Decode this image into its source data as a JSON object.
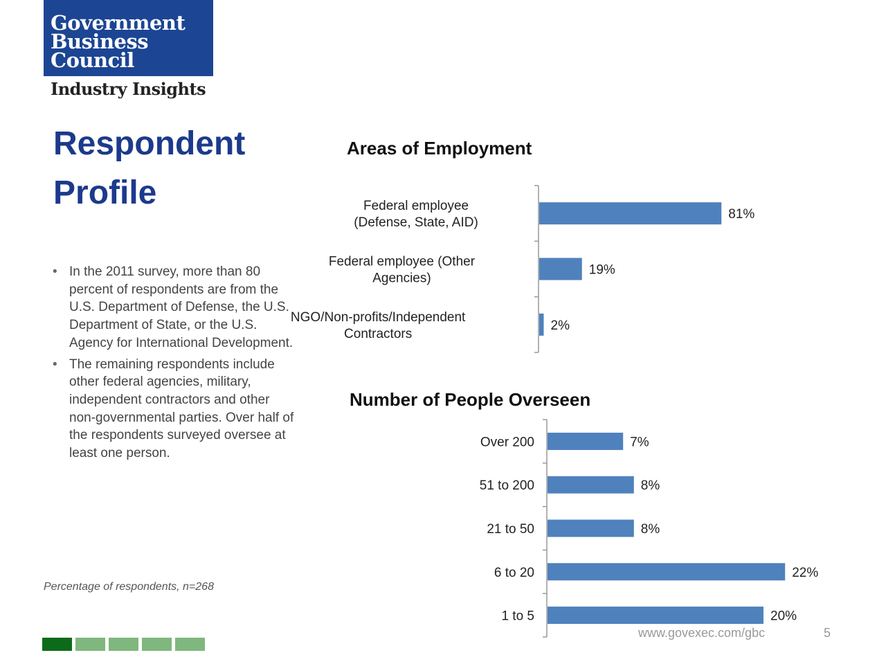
{
  "brand": {
    "logo_lines": [
      "Government",
      "Business",
      "Council"
    ],
    "subtitle": "Industry Insights",
    "logo_color": "#1c4593"
  },
  "slide": {
    "title_lines": [
      "Respondent",
      "Profile"
    ],
    "bullets": [
      "In the 2011 survey, more than 80 percent of respondents are from the U.S. Department of Defense, the U.S. Department of State, or the U.S. Agency for International Development.",
      "The remaining respondents include other federal agencies, military, independent contractors and other non-governmental parties. Over half  of the respondents surveyed oversee at least one person."
    ],
    "note": "Percentage of respondents, n=268",
    "footer_url": "www.govexec.com/gbc",
    "page_number": "5",
    "footer_colors": [
      "#0b6b1a",
      "#7fb77e",
      "#7fb77e",
      "#7fb77e",
      "#7fb77e"
    ]
  },
  "chart_data": [
    {
      "type": "bar",
      "orientation": "horizontal",
      "title": "Areas of Employment",
      "categories": [
        [
          "Federal employee",
          "(Defense, State, AID)"
        ],
        [
          "Federal employee (Other",
          "Agencies)"
        ],
        [
          "NGO/Non-profits/Independent",
          "Contractors"
        ]
      ],
      "values": [
        81,
        19,
        2
      ],
      "value_labels": [
        "81%",
        "19%",
        "2%"
      ],
      "xlim": [
        0,
        100
      ],
      "bar_color": "#4f81bd",
      "grid": false
    },
    {
      "type": "bar",
      "orientation": "horizontal",
      "title": "Number of People Overseen",
      "categories": [
        "Over 200",
        "51 to 200",
        "21 to 50",
        "6 to 20",
        "1 to 5"
      ],
      "values": [
        7,
        8,
        8,
        22,
        20
      ],
      "value_labels": [
        "7%",
        "8%",
        "8%",
        "22%",
        "20%"
      ],
      "xlim": [
        0,
        31
      ],
      "bar_color": "#4f81bd",
      "grid": false
    }
  ]
}
